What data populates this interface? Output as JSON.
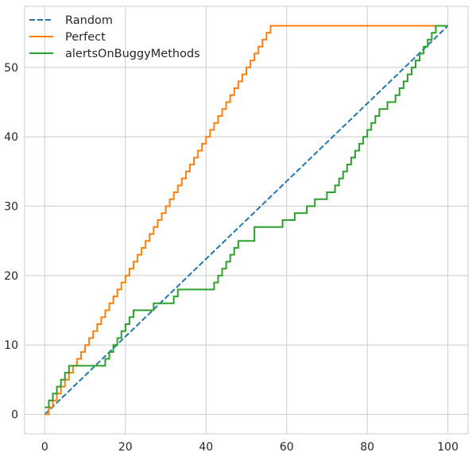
{
  "chart_data": {
    "type": "line",
    "title": "",
    "xlabel": "",
    "ylabel": "",
    "xlim": [
      -5,
      105
    ],
    "ylim": [
      -2.8,
      58.8
    ],
    "x_ticks": [
      0,
      20,
      40,
      60,
      80,
      100
    ],
    "y_ticks": [
      0,
      10,
      20,
      30,
      40,
      50
    ],
    "grid": true,
    "legend_position": "top-left",
    "series": [
      {
        "name": "Random",
        "color": "#1f77b4",
        "style": "dashed",
        "step": false,
        "x": [
          0,
          100
        ],
        "y": [
          0,
          56
        ]
      },
      {
        "name": "Perfect",
        "color": "#ff7f0e",
        "style": "solid",
        "step": true,
        "x": [
          0,
          1,
          2,
          3,
          4,
          5,
          6,
          7,
          8,
          9,
          10,
          11,
          12,
          13,
          14,
          15,
          16,
          17,
          18,
          19,
          20,
          21,
          22,
          23,
          24,
          25,
          26,
          27,
          28,
          29,
          30,
          31,
          32,
          33,
          34,
          35,
          36,
          37,
          38,
          39,
          40,
          41,
          42,
          43,
          44,
          45,
          46,
          47,
          48,
          49,
          50,
          51,
          52,
          53,
          54,
          55,
          56,
          100
        ],
        "y": [
          0,
          1,
          2,
          3,
          4,
          5,
          6,
          7,
          8,
          9,
          10,
          11,
          12,
          13,
          14,
          15,
          16,
          17,
          18,
          19,
          20,
          21,
          22,
          23,
          24,
          25,
          26,
          27,
          28,
          29,
          30,
          31,
          32,
          33,
          34,
          35,
          36,
          37,
          38,
          39,
          40,
          41,
          42,
          43,
          44,
          45,
          46,
          47,
          48,
          49,
          50,
          51,
          52,
          53,
          54,
          55,
          56,
          56
        ]
      },
      {
        "name": "alertsOnBuggyMethods",
        "color": "#2ca02c",
        "style": "solid",
        "step": true,
        "x": [
          0,
          1,
          2,
          3,
          4,
          5,
          6,
          15,
          16,
          17,
          18,
          19,
          20,
          21,
          22,
          27,
          32,
          33,
          42,
          43,
          44,
          45,
          46,
          47,
          48,
          52,
          59,
          62,
          65,
          67,
          70,
          72,
          73,
          74,
          75,
          76,
          77,
          78,
          79,
          80,
          81,
          82,
          83,
          85,
          87,
          88,
          89,
          90,
          91,
          92,
          93,
          94,
          95,
          96,
          97,
          98,
          100
        ],
        "y": [
          1,
          2,
          3,
          4,
          5,
          6,
          7,
          8,
          9,
          10,
          11,
          12,
          13,
          14,
          15,
          16,
          17,
          18,
          19,
          20,
          21,
          22,
          23,
          24,
          25,
          27,
          28,
          29,
          30,
          31,
          32,
          33,
          34,
          35,
          36,
          37,
          38,
          39,
          40,
          41,
          42,
          43,
          44,
          45,
          46,
          47,
          48,
          49,
          50,
          51,
          52,
          53,
          54,
          55,
          56,
          56,
          56
        ]
      }
    ]
  }
}
